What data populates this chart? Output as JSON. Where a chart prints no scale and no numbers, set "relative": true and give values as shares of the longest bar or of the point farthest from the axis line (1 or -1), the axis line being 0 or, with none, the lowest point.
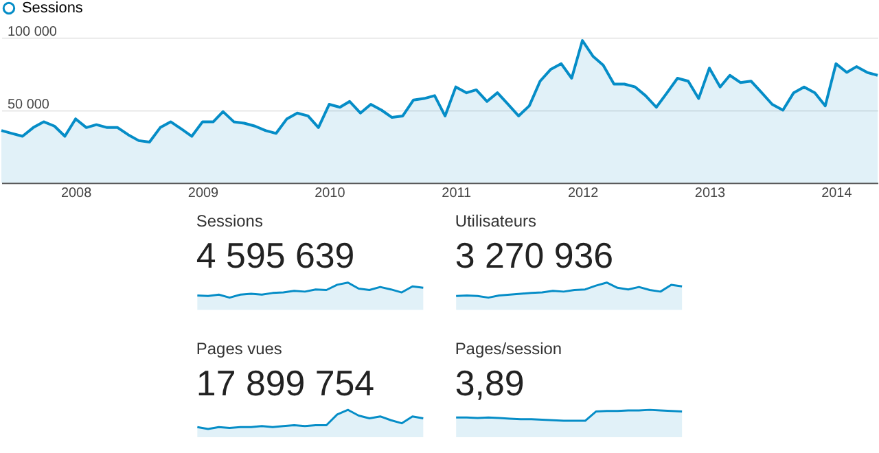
{
  "chart_data": [
    {
      "type": "area",
      "x": [
        "2007-06",
        "2007-07",
        "2007-08",
        "2007-09",
        "2007-10",
        "2007-11",
        "2007-12",
        "2008-01",
        "2008-02",
        "2008-03",
        "2008-04",
        "2008-05",
        "2008-06",
        "2008-07",
        "2008-08",
        "2008-09",
        "2008-10",
        "2008-11",
        "2008-12",
        "2009-01",
        "2009-02",
        "2009-03",
        "2009-04",
        "2009-05",
        "2009-06",
        "2009-07",
        "2009-08",
        "2009-09",
        "2009-10",
        "2009-11",
        "2009-12",
        "2010-01",
        "2010-02",
        "2010-03",
        "2010-04",
        "2010-05",
        "2010-06",
        "2010-07",
        "2010-08",
        "2010-09",
        "2010-10",
        "2010-11",
        "2010-12",
        "2011-01",
        "2011-02",
        "2011-03",
        "2011-04",
        "2011-05",
        "2011-06",
        "2011-07",
        "2011-08",
        "2011-09",
        "2011-10",
        "2011-11",
        "2011-12",
        "2012-01",
        "2012-02",
        "2012-03",
        "2012-04",
        "2012-05",
        "2012-06",
        "2012-07",
        "2012-08",
        "2012-09",
        "2012-10",
        "2012-11",
        "2012-12",
        "2013-01",
        "2013-02",
        "2013-03",
        "2013-04",
        "2013-05",
        "2013-06",
        "2013-07",
        "2013-08",
        "2013-09",
        "2013-10",
        "2013-11",
        "2013-12",
        "2014-01",
        "2014-02",
        "2014-03",
        "2014-04",
        "2014-05"
      ],
      "series": [
        {
          "name": "Sessions",
          "color": "#058dc7",
          "values": [
            36000,
            34000,
            32000,
            38000,
            42000,
            39000,
            32000,
            44000,
            38000,
            40000,
            38000,
            38000,
            33000,
            29000,
            28000,
            38000,
            42000,
            37000,
            32000,
            42000,
            42000,
            49000,
            42000,
            41000,
            39000,
            36000,
            34000,
            44000,
            48000,
            46000,
            38000,
            54000,
            52000,
            56000,
            48000,
            54000,
            50000,
            45000,
            46000,
            57000,
            58000,
            60000,
            46000,
            66000,
            62000,
            64000,
            56000,
            62000,
            54000,
            46000,
            53000,
            70000,
            78000,
            82000,
            72000,
            98000,
            87000,
            81000,
            68000,
            68000,
            66000,
            60000,
            52000,
            62000,
            72000,
            70000,
            58000,
            79000,
            66000,
            74000,
            69000,
            70000,
            62000,
            54000,
            50000,
            62000,
            66000,
            62000,
            53000,
            82000,
            76000,
            80000,
            76000,
            74000
          ]
        }
      ],
      "xlim": [
        "2007-06",
        "2014-05"
      ],
      "xticks": [
        "2008",
        "2009",
        "2010",
        "2011",
        "2012",
        "2013",
        "2014"
      ],
      "ylim": [
        0,
        100000
      ],
      "yticks": [
        {
          "value": 50000,
          "label": "50 000"
        },
        {
          "value": 100000,
          "label": "100 000"
        }
      ],
      "grid": "y",
      "legend": "top left"
    },
    {
      "type": "area",
      "title": "Sessions",
      "subtitle": "4 595 639",
      "relative": true,
      "categories": [
        null,
        null,
        null,
        null,
        null,
        null,
        null,
        null,
        null,
        null,
        null,
        null,
        null,
        null,
        null,
        null,
        null,
        null,
        null,
        null,
        null,
        null
      ],
      "series": [
        {
          "color": "#058dc7",
          "values": [
            0.53,
            0.51,
            0.56,
            0.45,
            0.56,
            0.59,
            0.56,
            0.62,
            0.64,
            0.7,
            0.67,
            0.75,
            0.73,
            0.92,
            1,
            0.78,
            0.73,
            0.84,
            0.75,
            0.64,
            0.86,
            0.81
          ]
        }
      ]
    },
    {
      "type": "area",
      "title": "Utilisateurs",
      "subtitle": "3 270 936",
      "relative": true,
      "categories": [
        null,
        null,
        null,
        null,
        null,
        null,
        null,
        null,
        null,
        null,
        null,
        null,
        null,
        null,
        null,
        null,
        null,
        null,
        null,
        null,
        null,
        null
      ],
      "series": [
        {
          "color": "#058dc7",
          "values": [
            0.51,
            0.53,
            0.51,
            0.45,
            0.53,
            0.56,
            0.59,
            0.62,
            0.64,
            0.7,
            0.67,
            0.73,
            0.75,
            0.89,
            1,
            0.81,
            0.75,
            0.84,
            0.73,
            0.67,
            0.92,
            0.86
          ]
        }
      ]
    },
    {
      "type": "area",
      "title": "Pages vues",
      "subtitle": "17 899 754",
      "relative": true,
      "categories": [
        null,
        null,
        null,
        null,
        null,
        null,
        null,
        null,
        null,
        null,
        null,
        null,
        null,
        null,
        null,
        null,
        null,
        null,
        null,
        null,
        null,
        null
      ],
      "series": [
        {
          "color": "#058dc7",
          "values": [
            0.37,
            0.3,
            0.37,
            0.34,
            0.37,
            0.37,
            0.41,
            0.37,
            0.41,
            0.44,
            0.41,
            0.44,
            0.44,
            0.83,
            1,
            0.79,
            0.69,
            0.76,
            0.62,
            0.51,
            0.76,
            0.69
          ]
        }
      ]
    },
    {
      "type": "area",
      "title": "Pages/session",
      "subtitle": "3,89",
      "relative": true,
      "categories": [
        null,
        null,
        null,
        null,
        null,
        null,
        null,
        null,
        null,
        null,
        null,
        null,
        null,
        null,
        null,
        null,
        null,
        null,
        null,
        null,
        null,
        null
      ],
      "series": [
        {
          "color": "#058dc7",
          "values": [
            0.72,
            0.72,
            0.7,
            0.72,
            0.7,
            0.68,
            0.66,
            0.66,
            0.64,
            0.62,
            0.6,
            0.6,
            0.6,
            0.94,
            0.96,
            0.96,
            0.98,
            0.98,
            1,
            0.98,
            0.96,
            0.94
          ]
        }
      ]
    }
  ]
}
